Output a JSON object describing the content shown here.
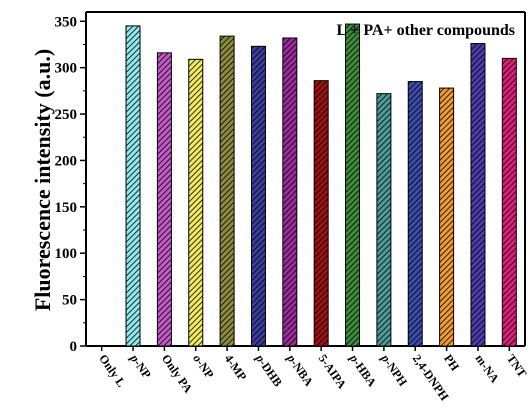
{
  "chart_data": {
    "type": "bar",
    "ylabel": "Fluorescence intensity (a.u.)",
    "xlabel": "",
    "annotation": "L + PA+ other compounds",
    "ylim": [
      0,
      360
    ],
    "yticks": [
      0,
      50,
      100,
      150,
      200,
      250,
      300,
      350
    ],
    "grid": false,
    "categories": [
      {
        "prefix": "",
        "base": "Only L"
      },
      {
        "prefix": "p",
        "base": "-NP"
      },
      {
        "prefix": "",
        "base": "Only PA"
      },
      {
        "prefix": "o",
        "base": "-NP"
      },
      {
        "prefix": "",
        "base": "4-MP"
      },
      {
        "prefix": "p",
        "base": "-DHB"
      },
      {
        "prefix": "p",
        "base": "-NBA"
      },
      {
        "prefix": "",
        "base": "5-AIPA"
      },
      {
        "prefix": "p",
        "base": "-HBA"
      },
      {
        "prefix": "p",
        "base": "-NPH"
      },
      {
        "prefix": "",
        "base": "2,4-DNPH"
      },
      {
        "prefix": "",
        "base": "PH"
      },
      {
        "prefix": "",
        "base": "m-NA"
      },
      {
        "prefix": "",
        "base": "TNT"
      }
    ],
    "values": [
      0,
      345,
      316,
      309,
      334,
      323,
      332,
      286,
      347,
      272,
      285,
      278,
      326,
      310
    ],
    "colors": [
      "#cccccc",
      "#8ee8ec",
      "#c45ac8",
      "#f0ec60",
      "#8c8c3c",
      "#3c3c9c",
      "#9c2c9c",
      "#a01010",
      "#3c8c3c",
      "#4c9c9c",
      "#3c4cac",
      "#f09c30",
      "#4c3cac",
      "#e01c7c"
    ]
  }
}
